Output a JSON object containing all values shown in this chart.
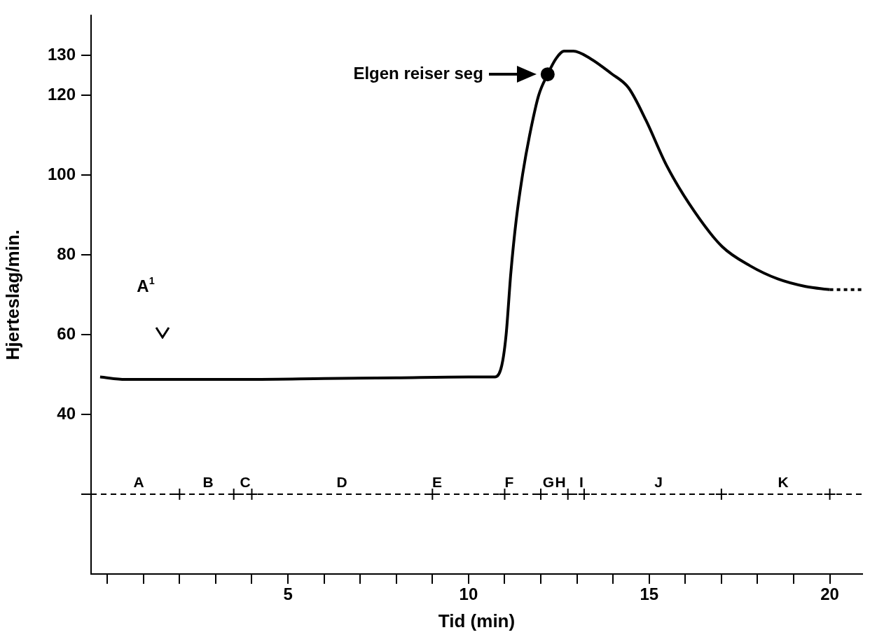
{
  "chart_data": {
    "type": "line",
    "xlabel": "Tid (min)",
    "ylabel": "Hjerteslag/min.",
    "xlim": [
      -0.45,
      20.9
    ],
    "ylim": [
      0,
      140
    ],
    "xticks": [
      {
        "value": 0,
        "label": null
      },
      {
        "value": 1,
        "label": null
      },
      {
        "value": 2,
        "label": null
      },
      {
        "value": 3,
        "label": null
      },
      {
        "value": 4,
        "label": null
      },
      5,
      {
        "value": 6,
        "label": null
      },
      {
        "value": 7,
        "label": null
      },
      {
        "value": 8,
        "label": null
      },
      {
        "value": 9,
        "label": null
      },
      10,
      {
        "value": 11,
        "label": null
      },
      {
        "value": 12,
        "label": null
      },
      {
        "value": 13,
        "label": null
      },
      {
        "value": 14,
        "label": null
      },
      15,
      {
        "value": 16,
        "label": null
      },
      {
        "value": 17,
        "label": null
      },
      {
        "value": 18,
        "label": null
      },
      {
        "value": 19,
        "label": null
      },
      20
    ],
    "yticks": [
      {
        "value": 20,
        "label": null
      },
      40,
      60,
      80,
      100,
      120,
      130
    ],
    "grid": false,
    "legend": false,
    "series": [
      {
        "color": "#000000",
        "marker": "none",
        "line_style": "solid",
        "x": [
          -0.2,
          0.5,
          2,
          4,
          6,
          8,
          10,
          10.73,
          10.92,
          11.04,
          11.17,
          11.32,
          11.5,
          11.69,
          11.94,
          12.19,
          12.42,
          12.65,
          12.9,
          13.38,
          13.95,
          14.43,
          14.91,
          15.49,
          16.26,
          17.02,
          17.79,
          18.56,
          19.33,
          20.0
        ],
        "values": [
          49.4,
          48.8,
          48.8,
          48.8,
          49,
          49.2,
          49.4,
          49.4,
          52.3,
          60,
          75.4,
          88.8,
          100.4,
          110,
          120,
          125.3,
          129.2,
          131.1,
          131.1,
          129.2,
          125.5,
          121.9,
          113.8,
          102.3,
          90.8,
          82.1,
          77.3,
          74,
          72.1,
          71.3
        ]
      },
      {
        "type": "line",
        "color": "#000000",
        "marker": "none",
        "line_style": "dotted",
        "x": [
          20.0,
          20.9
        ],
        "values": [
          71.3,
          71.3
        ]
      },
      {
        "type": "scatter",
        "color": "#000000",
        "marker": "circle",
        "x": [
          12.19
        ],
        "values": [
          125.3
        ]
      },
      {
        "type": "scatter",
        "color": "#000000",
        "marker": "cross",
        "x": [
          2,
          3.5,
          4,
          9,
          11,
          12,
          12.75,
          13.2,
          17,
          20
        ],
        "values": [
          20,
          20,
          20,
          20,
          20,
          20,
          20,
          20,
          20,
          20
        ]
      }
    ],
    "ref_lines": [
      {
        "axis": "y",
        "value": 20,
        "color": "#000000",
        "line_style": "dashed"
      }
    ],
    "annotations": [
      "Elgen reiser seg",
      "A$^{1}$",
      "A",
      "B",
      "C",
      "D",
      "E",
      "F",
      "G",
      "H",
      "I",
      "J",
      "K"
    ]
  }
}
